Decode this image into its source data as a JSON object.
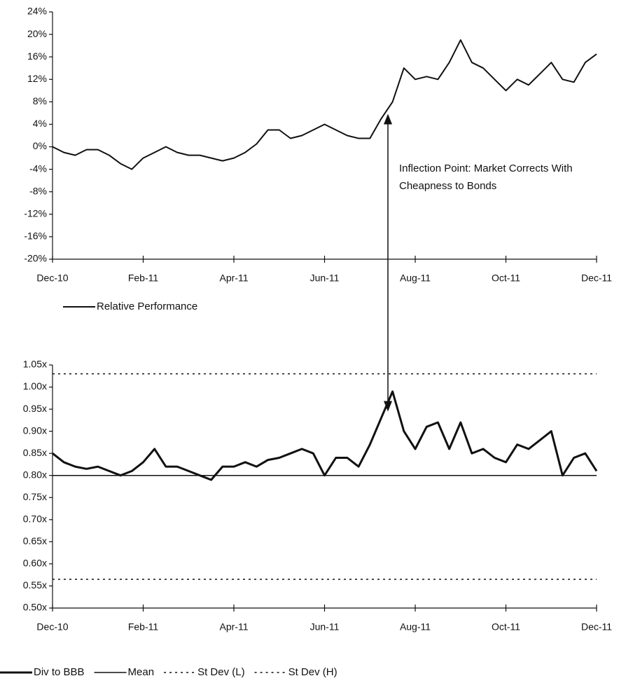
{
  "chart_data": [
    {
      "type": "line",
      "categories": [
        "Dec-10",
        null,
        null,
        null,
        null,
        null,
        null,
        null,
        "Feb-11",
        null,
        null,
        null,
        null,
        null,
        null,
        null,
        "Apr-11",
        null,
        null,
        null,
        null,
        null,
        null,
        null,
        "Jun-11",
        null,
        null,
        null,
        null,
        null,
        null,
        null,
        "Aug-11",
        null,
        null,
        null,
        null,
        null,
        null,
        null,
        "Oct-11",
        null,
        null,
        null,
        null,
        null,
        null,
        null,
        "Dec-11"
      ],
      "series": [
        {
          "name": "Relative Performance",
          "color": "#111111",
          "values": [
            0,
            -1,
            -1.5,
            -0.5,
            -0.5,
            -1.5,
            -3,
            -4,
            -2,
            -1,
            0,
            -1,
            -1.5,
            -1.5,
            -2,
            -2.5,
            -2,
            -1,
            0.5,
            3,
            3,
            1.5,
            2,
            3,
            4,
            3,
            2,
            1.5,
            1.5,
            5,
            8,
            14,
            12,
            12.5,
            12,
            15,
            19,
            15,
            14,
            12,
            10,
            12,
            11,
            13,
            15,
            12,
            11.5,
            15,
            16.5
          ]
        }
      ],
      "ylim": [
        -20,
        24
      ],
      "yticks": [
        {
          "value": -20,
          "label": "-20%"
        },
        {
          "value": -16,
          "label": "-16%"
        },
        {
          "value": -12,
          "label": "-12%"
        },
        {
          "value": -8,
          "label": "-8%"
        },
        {
          "value": -4,
          "label": "-4%"
        },
        {
          "value": 0,
          "label": "0%"
        },
        {
          "value": 4,
          "label": "4%"
        },
        {
          "value": 8,
          "label": "8%"
        },
        {
          "value": 12,
          "label": "12%"
        },
        {
          "value": 16,
          "label": "16%"
        },
        {
          "value": 20,
          "label": "20%"
        },
        {
          "value": 24,
          "label": "24%"
        }
      ],
      "annotation": "Inflection Point: Market Corrects With Cheapness to Bonds"
    },
    {
      "type": "line",
      "categories": [
        "Dec-10",
        null,
        null,
        null,
        null,
        null,
        null,
        null,
        "Feb-11",
        null,
        null,
        null,
        null,
        null,
        null,
        null,
        "Apr-11",
        null,
        null,
        null,
        null,
        null,
        null,
        null,
        "Jun-11",
        null,
        null,
        null,
        null,
        null,
        null,
        null,
        "Aug-11",
        null,
        null,
        null,
        null,
        null,
        null,
        null,
        "Oct-11",
        null,
        null,
        null,
        null,
        null,
        null,
        null,
        "Dec-11"
      ],
      "series": [
        {
          "name": "Div to BBB",
          "color": "#111111",
          "width": 3,
          "values": [
            0.85,
            0.83,
            0.82,
            0.815,
            0.82,
            0.81,
            0.8,
            0.81,
            0.83,
            0.86,
            0.82,
            0.82,
            0.81,
            0.8,
            0.79,
            0.82,
            0.82,
            0.83,
            0.82,
            0.835,
            0.84,
            0.85,
            0.86,
            0.85,
            0.8,
            0.84,
            0.84,
            0.82,
            0.87,
            0.93,
            0.99,
            0.9,
            0.86,
            0.91,
            0.92,
            0.86,
            0.92,
            0.85,
            0.86,
            0.84,
            0.83,
            0.87,
            0.86,
            0.88,
            0.9,
            0.8,
            0.84,
            0.85,
            0.81
          ]
        },
        {
          "name": "Mean",
          "color": "#111111",
          "width": 1.5,
          "value": 0.8
        },
        {
          "name": "St Dev (L)",
          "color": "#111111",
          "width": 1.5,
          "dash": true,
          "value": 0.565
        },
        {
          "name": "St Dev (H)",
          "color": "#111111",
          "width": 1.5,
          "dash": true,
          "value": 1.03
        }
      ],
      "ylim": [
        0.5,
        1.05
      ],
      "yticks": [
        {
          "value": 0.5,
          "label": "0.50x"
        },
        {
          "value": 0.55,
          "label": "0.55x"
        },
        {
          "value": 0.6,
          "label": "0.60x"
        },
        {
          "value": 0.65,
          "label": "0.65x"
        },
        {
          "value": 0.7,
          "label": "0.70x"
        },
        {
          "value": 0.75,
          "label": "0.75x"
        },
        {
          "value": 0.8,
          "label": "0.80x"
        },
        {
          "value": 0.85,
          "label": "0.85x"
        },
        {
          "value": 0.9,
          "label": "0.90x"
        },
        {
          "value": 0.95,
          "label": "0.95x"
        },
        {
          "value": 1.0,
          "label": "1.00x"
        },
        {
          "value": 1.05,
          "label": "1.05x"
        }
      ]
    }
  ]
}
